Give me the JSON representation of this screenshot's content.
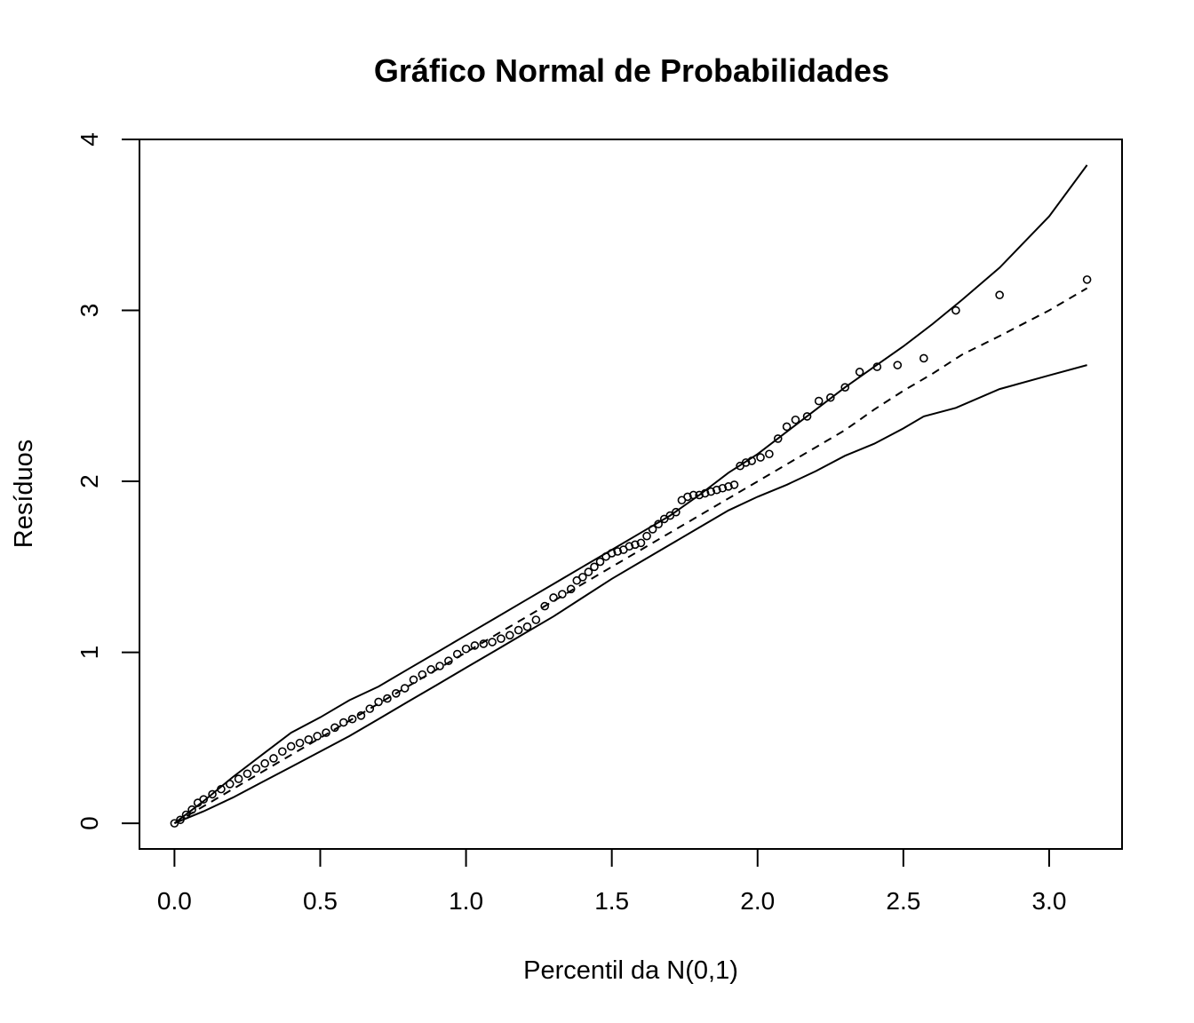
{
  "chart_data": {
    "type": "scatter",
    "title": "Gráfico Normal de Probabilidades",
    "xlabel": "Percentil da N(0,1)",
    "ylabel": "Resíduos",
    "xlim": [
      -0.12,
      3.25
    ],
    "ylim": [
      -0.15,
      4.0
    ],
    "x_ticks": [
      0.0,
      0.5,
      1.0,
      1.5,
      2.0,
      2.5,
      3.0
    ],
    "x_tick_labels": [
      "0.0",
      "0.5",
      "1.0",
      "1.5",
      "2.0",
      "2.5",
      "3.0"
    ],
    "y_ticks": [
      0,
      1,
      2,
      3,
      4
    ],
    "y_tick_labels": [
      "0",
      "1",
      "2",
      "3",
      "4"
    ],
    "grid": false,
    "legend": "none",
    "series": [
      {
        "style": "points",
        "x": [
          0.0,
          0.02,
          0.04,
          0.06,
          0.08,
          0.1,
          0.13,
          0.16,
          0.19,
          0.22,
          0.25,
          0.28,
          0.31,
          0.34,
          0.37,
          0.4,
          0.43,
          0.46,
          0.49,
          0.52,
          0.55,
          0.58,
          0.61,
          0.64,
          0.67,
          0.7,
          0.73,
          0.76,
          0.79,
          0.82,
          0.85,
          0.88,
          0.91,
          0.94,
          0.97,
          1.0,
          1.03,
          1.06,
          1.09,
          1.12,
          1.15,
          1.18,
          1.21,
          1.24,
          1.27,
          1.3,
          1.33,
          1.36,
          1.38,
          1.4,
          1.42,
          1.44,
          1.46,
          1.48,
          1.5,
          1.52,
          1.54,
          1.56,
          1.58,
          1.6,
          1.62,
          1.64,
          1.66,
          1.68,
          1.7,
          1.72,
          1.74,
          1.76,
          1.78,
          1.8,
          1.82,
          1.84,
          1.86,
          1.88,
          1.9,
          1.92,
          1.94,
          1.96,
          1.98,
          2.01,
          2.04,
          2.07,
          2.1,
          2.13,
          2.17,
          2.21,
          2.25,
          2.3,
          2.35,
          2.41,
          2.48,
          2.57,
          2.68,
          2.83,
          3.13
        ],
        "y": [
          0.0,
          0.02,
          0.05,
          0.08,
          0.12,
          0.14,
          0.17,
          0.2,
          0.23,
          0.26,
          0.29,
          0.32,
          0.35,
          0.38,
          0.42,
          0.45,
          0.47,
          0.49,
          0.51,
          0.53,
          0.56,
          0.59,
          0.61,
          0.63,
          0.67,
          0.71,
          0.73,
          0.76,
          0.79,
          0.84,
          0.87,
          0.9,
          0.92,
          0.95,
          0.99,
          1.02,
          1.04,
          1.05,
          1.06,
          1.08,
          1.1,
          1.13,
          1.15,
          1.19,
          1.27,
          1.32,
          1.34,
          1.37,
          1.42,
          1.44,
          1.47,
          1.5,
          1.53,
          1.56,
          1.58,
          1.59,
          1.6,
          1.62,
          1.63,
          1.64,
          1.68,
          1.72,
          1.75,
          1.78,
          1.8,
          1.82,
          1.89,
          1.91,
          1.92,
          1.92,
          1.93,
          1.94,
          1.95,
          1.96,
          1.97,
          1.98,
          2.09,
          2.11,
          2.12,
          2.14,
          2.16,
          2.25,
          2.32,
          2.36,
          2.38,
          2.47,
          2.49,
          2.55,
          2.64,
          2.67,
          2.68,
          2.72,
          3.0,
          3.09,
          3.18
        ]
      },
      {
        "style": "solid",
        "x": [
          0.0,
          0.1,
          0.2,
          0.3,
          0.4,
          0.5,
          0.6,
          0.7,
          0.8,
          0.9,
          1.0,
          1.1,
          1.2,
          1.3,
          1.4,
          1.5,
          1.6,
          1.7,
          1.8,
          1.9,
          2.0,
          2.1,
          2.2,
          2.3,
          2.4,
          2.5,
          2.6,
          2.7,
          2.83,
          3.0,
          3.13
        ],
        "y": [
          0.0,
          0.13,
          0.27,
          0.4,
          0.53,
          0.62,
          0.72,
          0.8,
          0.9,
          1.0,
          1.1,
          1.2,
          1.3,
          1.4,
          1.5,
          1.6,
          1.7,
          1.8,
          1.92,
          2.05,
          2.16,
          2.29,
          2.42,
          2.55,
          2.67,
          2.79,
          2.92,
          3.06,
          3.25,
          3.55,
          3.85
        ]
      },
      {
        "style": "dashed",
        "x": [
          0.0,
          0.1,
          0.2,
          0.3,
          0.4,
          0.5,
          0.6,
          0.7,
          0.8,
          0.9,
          1.0,
          1.1,
          1.2,
          1.3,
          1.4,
          1.5,
          1.6,
          1.7,
          1.8,
          1.9,
          2.0,
          2.1,
          2.2,
          2.3,
          2.4,
          2.5,
          2.6,
          2.7,
          2.83,
          3.0,
          3.13
        ],
        "y": [
          0.0,
          0.1,
          0.2,
          0.3,
          0.4,
          0.5,
          0.6,
          0.7,
          0.8,
          0.9,
          1.0,
          1.1,
          1.2,
          1.3,
          1.4,
          1.5,
          1.6,
          1.7,
          1.8,
          1.9,
          2.0,
          2.1,
          2.2,
          2.3,
          2.42,
          2.53,
          2.63,
          2.74,
          2.85,
          3.0,
          3.13
        ]
      },
      {
        "style": "solid",
        "x": [
          0.0,
          0.1,
          0.2,
          0.3,
          0.4,
          0.5,
          0.6,
          0.7,
          0.8,
          0.9,
          1.0,
          1.1,
          1.2,
          1.3,
          1.4,
          1.5,
          1.6,
          1.7,
          1.8,
          1.9,
          2.0,
          2.1,
          2.2,
          2.3,
          2.4,
          2.5,
          2.57,
          2.68,
          2.83,
          3.0,
          3.13
        ],
        "y": [
          0.0,
          0.07,
          0.15,
          0.24,
          0.33,
          0.42,
          0.51,
          0.61,
          0.71,
          0.81,
          0.91,
          1.01,
          1.11,
          1.21,
          1.32,
          1.43,
          1.53,
          1.63,
          1.73,
          1.83,
          1.91,
          1.98,
          2.06,
          2.15,
          2.22,
          2.31,
          2.38,
          2.43,
          2.54,
          2.62,
          2.68
        ]
      }
    ]
  }
}
